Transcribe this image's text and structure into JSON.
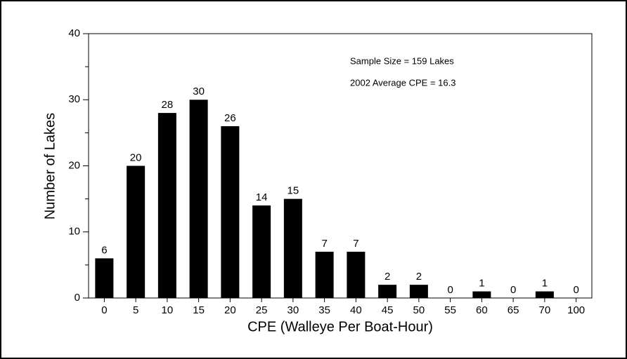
{
  "chart_data": {
    "type": "bar",
    "xlabel": "CPE (Walleye Per Boat-Hour)",
    "ylabel": "Number of Lakes",
    "annotations": [
      "Sample Size = 159 Lakes",
      "2002 Average CPE = 16.3"
    ],
    "categories": [
      "0",
      "5",
      "10",
      "15",
      "20",
      "25",
      "30",
      "35",
      "40",
      "45",
      "50",
      "55",
      "60",
      "65",
      "70",
      "100"
    ],
    "values": [
      6,
      20,
      28,
      30,
      26,
      14,
      15,
      7,
      7,
      2,
      2,
      0,
      1,
      0,
      1,
      0
    ],
    "color": "#000000",
    "ylim": [
      0,
      40
    ],
    "yticks": [
      0,
      10,
      20,
      30,
      40
    ],
    "yminorticks": [
      5,
      15,
      25,
      35
    ],
    "grid": false
  }
}
